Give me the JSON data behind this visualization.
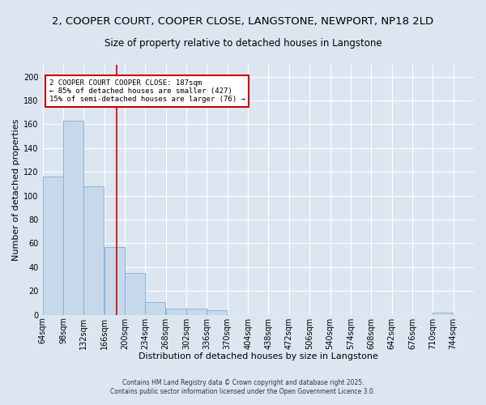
{
  "title_line1": "2, COOPER COURT, COOPER CLOSE, LANGSTONE, NEWPORT, NP18 2LD",
  "title_line2": "Size of property relative to detached houses in Langstone",
  "xlabel": "Distribution of detached houses by size in Langstone",
  "ylabel": "Number of detached properties",
  "bar_color": "#c8d8eb",
  "bar_edge_color": "#7aafd4",
  "background_color": "#dce6f1",
  "plot_bg_color": "#dce6f1",
  "grid_color": "#ffffff",
  "vline_color": "#cc0000",
  "vline_x": 187,
  "annotation_text": "2 COOPER COURT COOPER CLOSE: 187sqm\n← 85% of detached houses are smaller (427)\n15% of semi-detached houses are larger (76) →",
  "annotation_box_color": "#ffffff",
  "annotation_border_color": "#cc0000",
  "categories": [
    "64sqm",
    "98sqm",
    "132sqm",
    "166sqm",
    "200sqm",
    "234sqm",
    "268sqm",
    "302sqm",
    "336sqm",
    "370sqm",
    "404sqm",
    "438sqm",
    "472sqm",
    "506sqm",
    "540sqm",
    "574sqm",
    "608sqm",
    "642sqm",
    "676sqm",
    "710sqm",
    "744sqm"
  ],
  "bin_edges": [
    64,
    98,
    132,
    166,
    200,
    234,
    268,
    302,
    336,
    370,
    404,
    438,
    472,
    506,
    540,
    574,
    608,
    642,
    676,
    710,
    744
  ],
  "bin_width": 34,
  "values": [
    116,
    163,
    108,
    57,
    35,
    11,
    5,
    5,
    4,
    0,
    0,
    0,
    0,
    0,
    0,
    0,
    0,
    0,
    0,
    2,
    0
  ],
  "ylim": [
    0,
    210
  ],
  "yticks": [
    0,
    20,
    40,
    60,
    80,
    100,
    120,
    140,
    160,
    180,
    200
  ],
  "title_fontsize": 9.5,
  "subtitle_fontsize": 8.5,
  "axis_label_fontsize": 8,
  "tick_fontsize": 7,
  "footer_fontsize": 5.5
}
